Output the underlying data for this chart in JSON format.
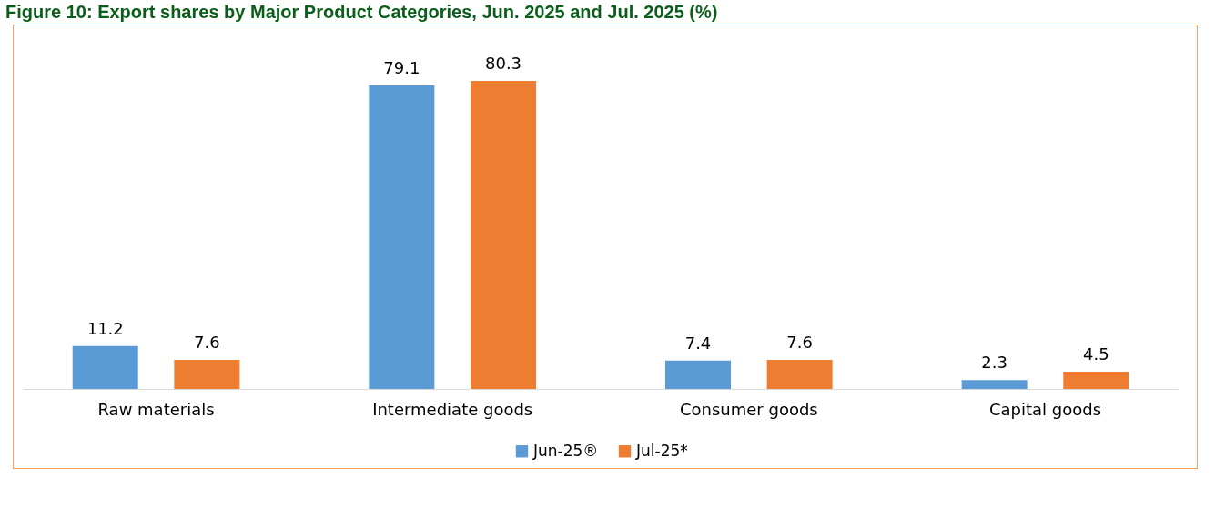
{
  "chart_data": {
    "type": "bar",
    "title": "Figure 10: Export shares by Major Product Categories, Jun. 2025 and Jul. 2025 (%)",
    "categories": [
      "Raw materials",
      "Intermediate goods",
      "Consumer goods",
      "Capital goods"
    ],
    "series": [
      {
        "name": "Jun-25®",
        "color": "#5b9bd5",
        "values": [
          11.2,
          79.1,
          7.4,
          2.3
        ]
      },
      {
        "name": "Jul-25*",
        "color": "#ed7d31",
        "values": [
          7.6,
          80.3,
          7.6,
          4.5
        ]
      }
    ],
    "data_labels": true,
    "legend": "bottom"
  }
}
